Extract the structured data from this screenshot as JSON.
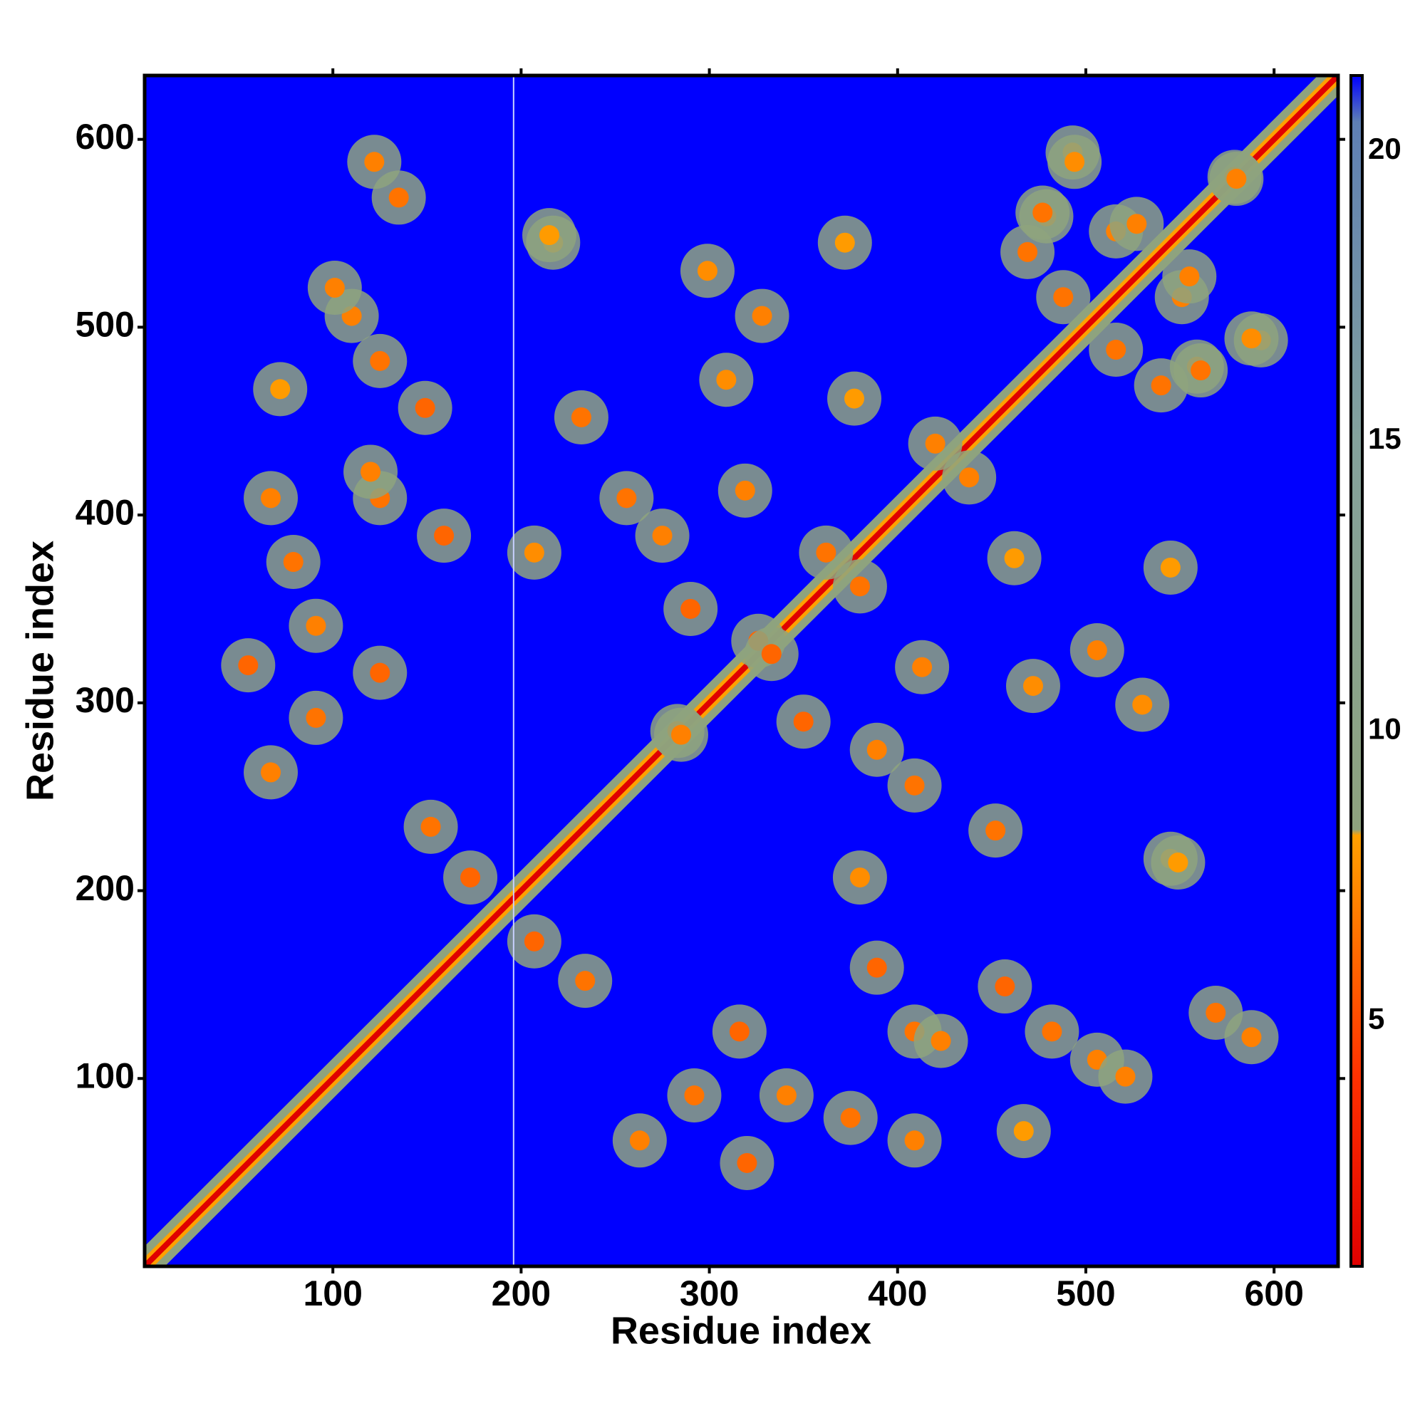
{
  "chart_data": {
    "type": "contact-map",
    "x_label": "Residue index",
    "y_label": "Residue index",
    "xlim": [
      0,
      634
    ],
    "ylim": [
      0,
      634
    ],
    "xticks": [
      100,
      200,
      300,
      400,
      500,
      600
    ],
    "yticks": [
      100,
      200,
      300,
      400,
      500,
      600
    ],
    "clim": [
      0.77,
      21.3
    ],
    "cticks": [
      5,
      10,
      15,
      20
    ],
    "colorscale": [
      [
        0.77,
        "#e00000"
      ],
      [
        4,
        "#ff3000"
      ],
      [
        8.2,
        "#ffa000"
      ],
      [
        8.3,
        "#8ea37e"
      ],
      [
        15,
        "#84a29c"
      ],
      [
        20.5,
        "#5e7fb4"
      ],
      [
        21.3,
        "#0000ff"
      ]
    ],
    "symmetric": true,
    "gap_x": 196,
    "contacts": {
      "x": [
        207,
        234,
        263,
        292,
        316,
        341,
        320,
        375,
        409,
        389,
        409,
        423,
        457,
        482,
        506,
        521,
        467,
        569,
        588,
        380,
        409,
        452,
        350,
        389,
        545,
        283,
        326,
        413,
        472,
        506,
        530,
        462,
        380,
        438,
        545,
        593,
        540,
        559,
        516,
        477,
        516,
        494,
        579,
        555,
        215
      ],
      "y": [
        173,
        152,
        67,
        91,
        125,
        91,
        55,
        79,
        67,
        159,
        125,
        120,
        149,
        125,
        110,
        101,
        72,
        135,
        122,
        207,
        256,
        232,
        290,
        275,
        217,
        285,
        333,
        319,
        309,
        328,
        299,
        377,
        362,
        420,
        372,
        493,
        469,
        479,
        488,
        561,
        551,
        588,
        580,
        527,
        549
      ],
      "values": [
        6,
        6.5,
        7,
        6.5,
        6,
        7,
        6,
        6.5,
        7,
        6,
        6.5,
        7,
        6,
        6.5,
        7,
        7,
        8,
        6.5,
        7,
        7.5,
        6.5,
        6.5,
        6,
        7,
        8,
        7,
        6,
        7,
        7.5,
        7,
        7.5,
        8,
        6.5,
        7,
        8,
        7.5,
        6.5,
        7,
        6.5,
        6.5,
        7,
        7.5,
        7,
        7,
        8
      ]
    }
  }
}
